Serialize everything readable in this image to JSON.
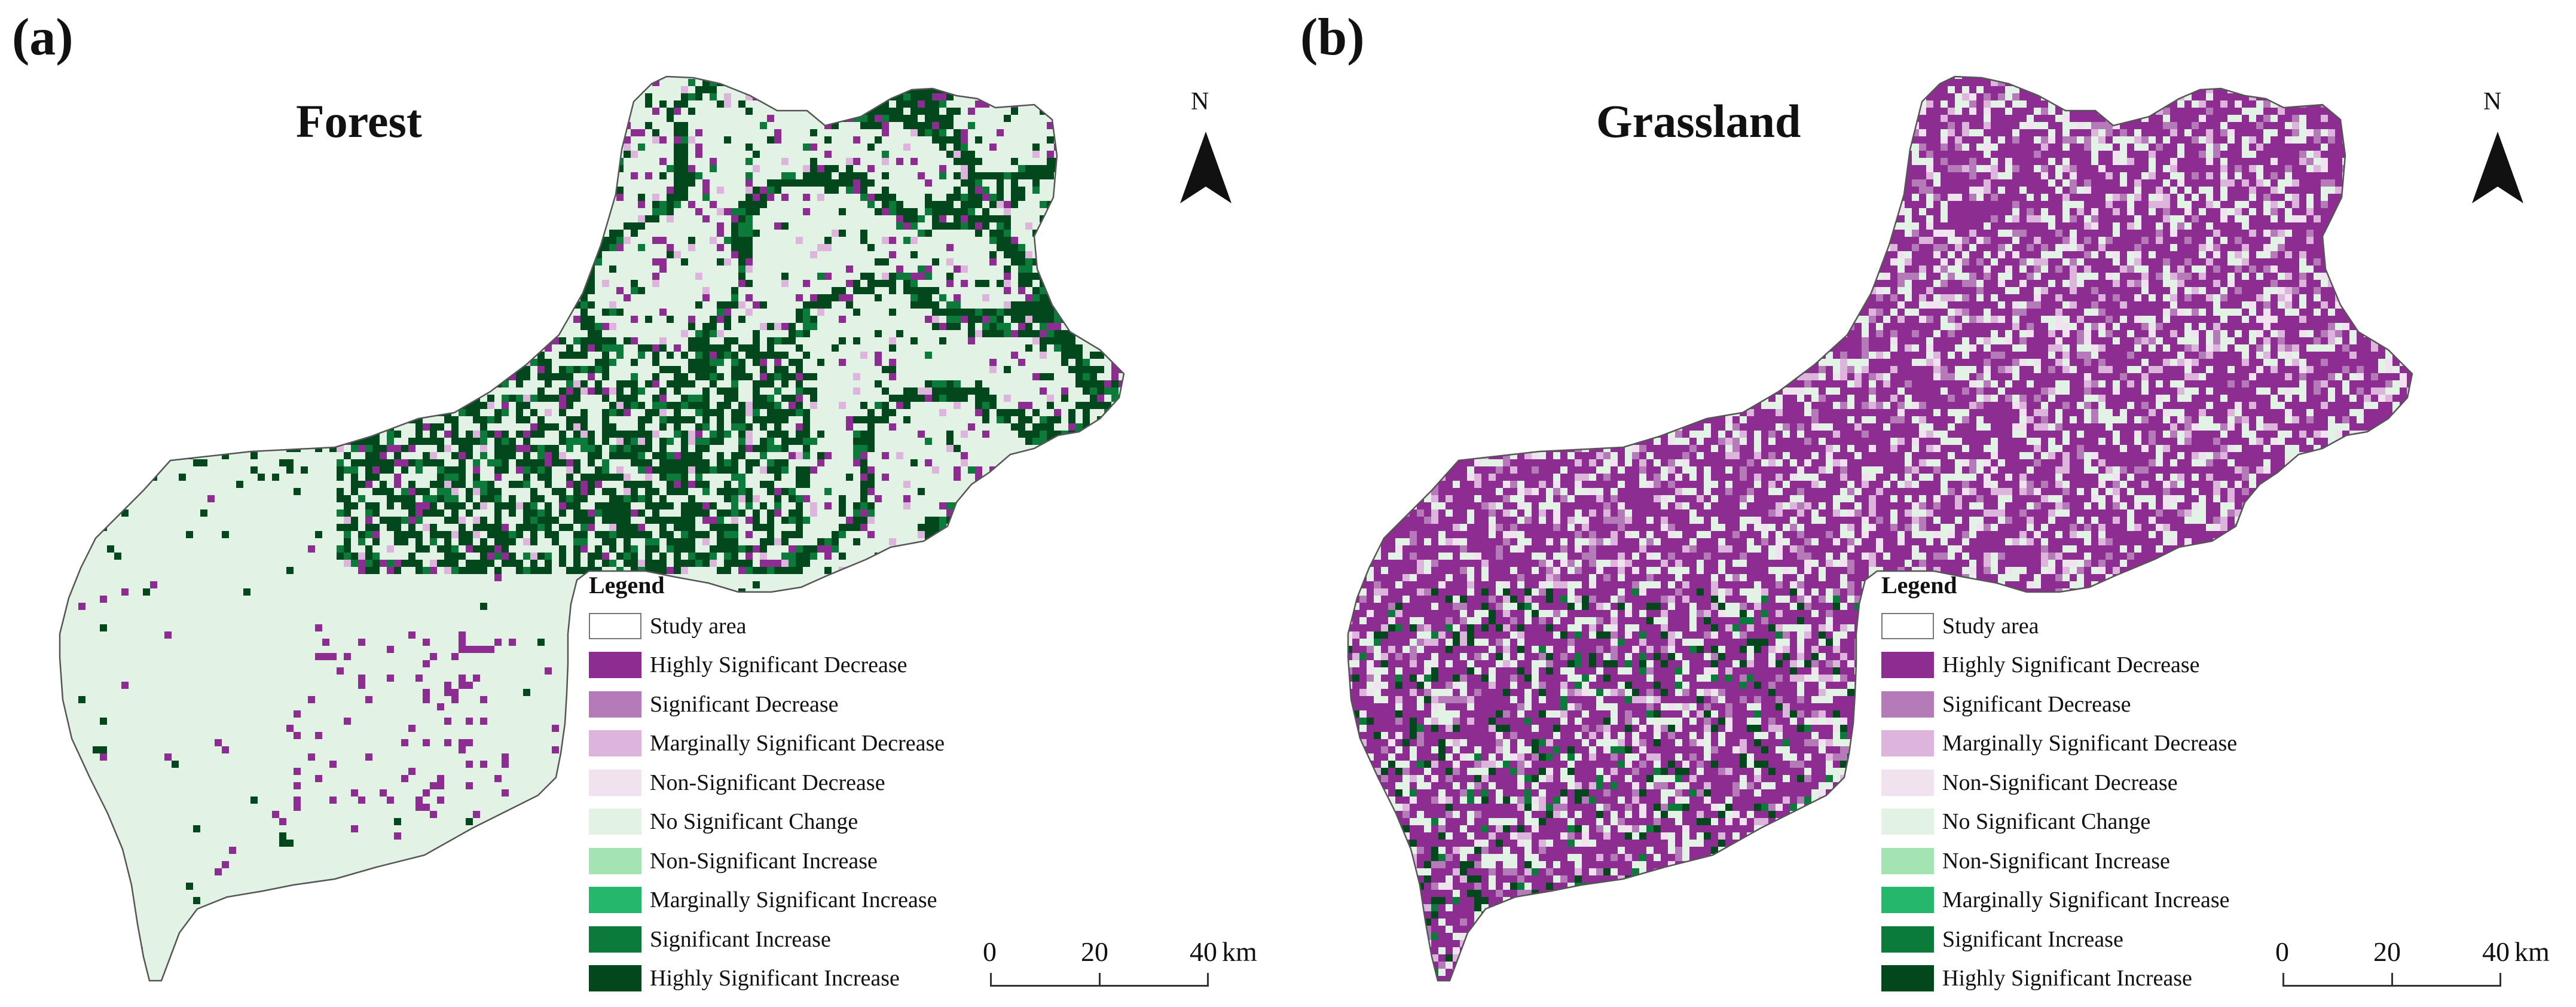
{
  "colors": {
    "highly_sig_decrease": "#8e2d91",
    "sig_decrease": "#b47bb8",
    "marg_sig_decrease": "#dcb4dc",
    "nonsig_decrease": "#f1e2f0",
    "no_change": "#e2f2e4",
    "nonsig_increase": "#a4e4b2",
    "marg_sig_increase": "#25b86c",
    "sig_increase": "#0c7a3a",
    "highly_sig_increase": "#03471c",
    "boundary": "#555555"
  },
  "panels": [
    {
      "label": "(a)",
      "title": "Forest",
      "north_letter": "N",
      "legend_title": "Legend",
      "legend_items": [
        {
          "label": "Study area",
          "color": "outline"
        },
        {
          "label": "Highly Significant Decrease",
          "color": "#8e2d91"
        },
        {
          "label": "Significant Decrease",
          "color": "#b47bb8"
        },
        {
          "label": "Marginally Significant Decrease",
          "color": "#dcb4dc"
        },
        {
          "label": "Non-Significant Decrease",
          "color": "#f1e2f0"
        },
        {
          "label": "No Significant Change",
          "color": "#e2f2e4"
        },
        {
          "label": "Non-Significant Increase",
          "color": "#a4e4b2"
        },
        {
          "label": "Marginally Significant Increase",
          "color": "#25b86c"
        },
        {
          "label": "Significant Increase",
          "color": "#0c7a3a"
        },
        {
          "label": "Highly Significant Increase",
          "color": "#03471c"
        }
      ],
      "scale": {
        "ticks": [
          "0",
          "20",
          "40"
        ],
        "unit": "km"
      }
    },
    {
      "label": "(b)",
      "title": "Grassland",
      "north_letter": "N",
      "legend_title": "Legend",
      "legend_items": [
        {
          "label": "Study area",
          "color": "outline"
        },
        {
          "label": "Highly Significant Decrease",
          "color": "#8e2d91"
        },
        {
          "label": "Significant Decrease",
          "color": "#b47bb8"
        },
        {
          "label": "Marginally Significant Decrease",
          "color": "#dcb4dc"
        },
        {
          "label": "Non-Significant Decrease",
          "color": "#f1e2f0"
        },
        {
          "label": "No Significant Change",
          "color": "#e2f2e4"
        },
        {
          "label": "Non-Significant Increase",
          "color": "#a4e4b2"
        },
        {
          "label": "Marginally Significant Increase",
          "color": "#25b86c"
        },
        {
          "label": "Significant Increase",
          "color": "#0c7a3a"
        },
        {
          "label": "Highly Significant Increase",
          "color": "#03471c"
        }
      ],
      "scale": {
        "ticks": [
          "0",
          "20",
          "40"
        ],
        "unit": "km"
      }
    }
  ]
}
